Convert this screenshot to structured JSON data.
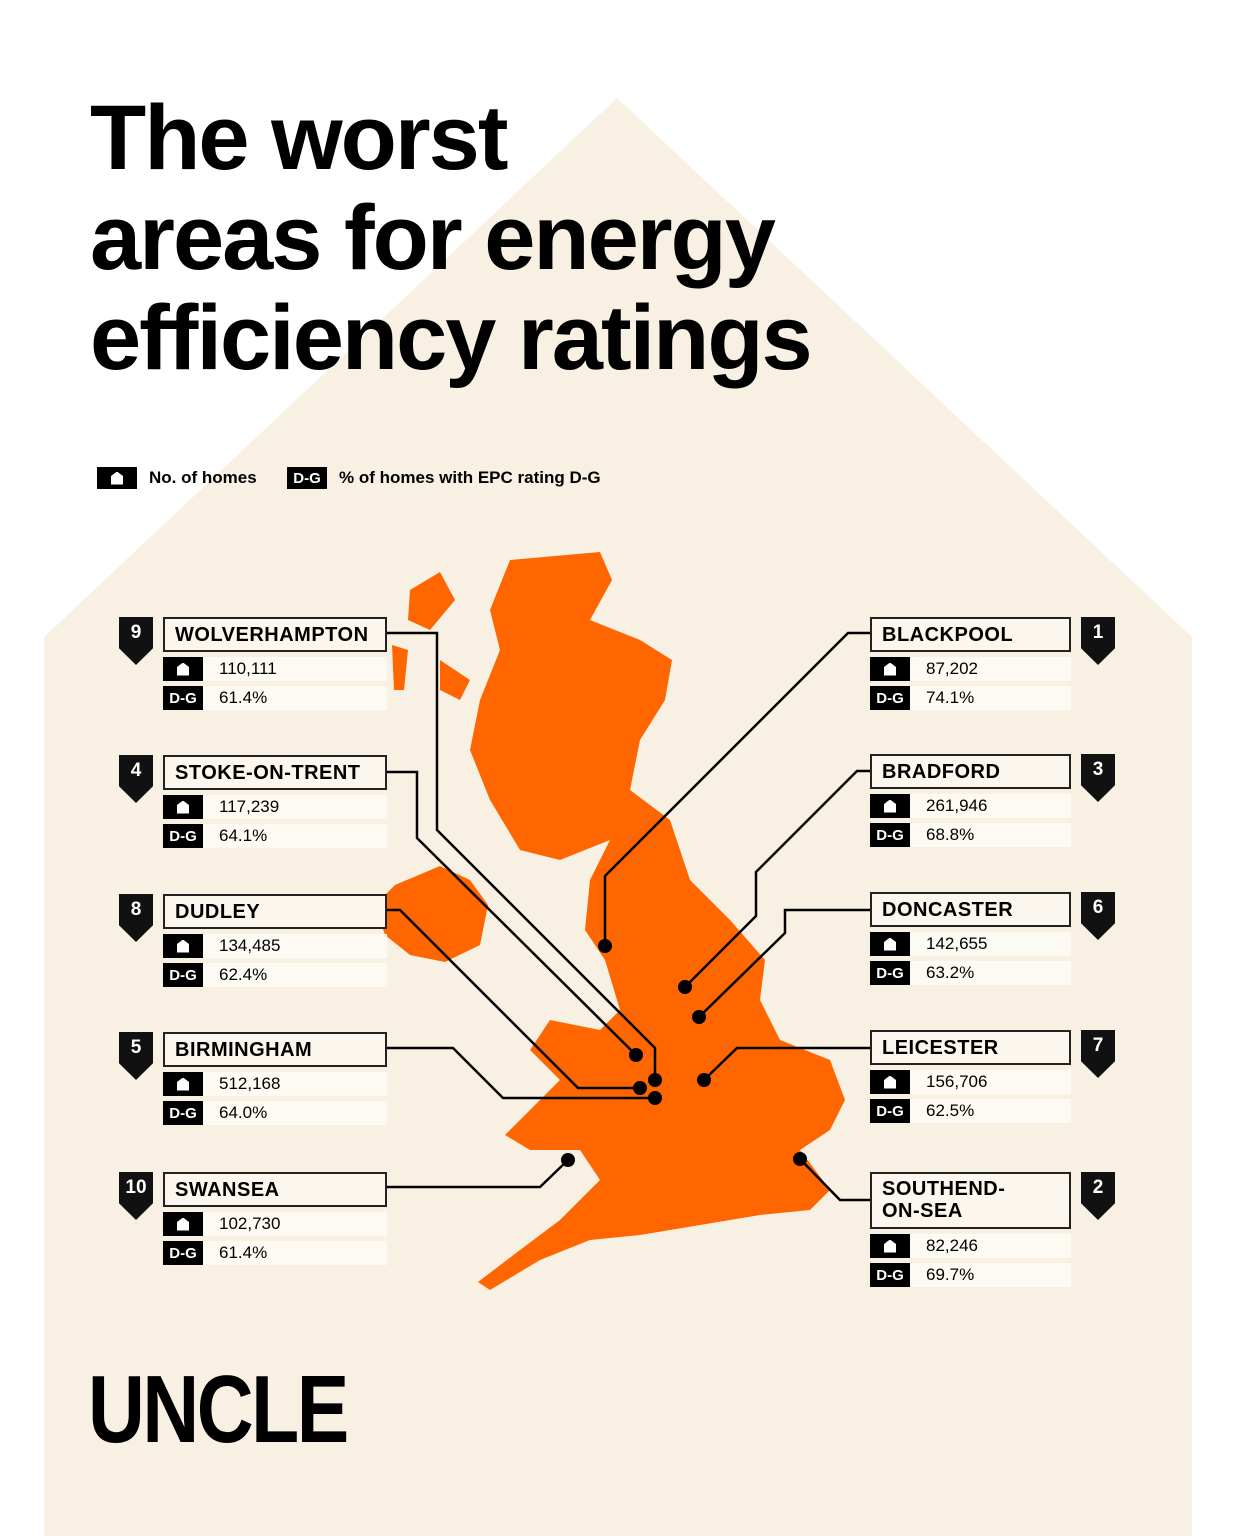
{
  "title_lines": [
    "The worst",
    "areas for energy",
    "efficiency ratings"
  ],
  "legend": {
    "homes_label": "No. of homes",
    "dg_icon": "D-G",
    "dg_label": "% of homes with EPC rating D-G"
  },
  "colors": {
    "map": "#ff6600",
    "background": "#f8f1e3",
    "ink": "#000000"
  },
  "icons": {
    "homes": "house-icon",
    "rank": "rank-badge"
  },
  "areas": [
    {
      "rank": "9",
      "name": "WOLVERHAMPTON",
      "homes": "110,111",
      "dg": "61.4%"
    },
    {
      "rank": "4",
      "name": "STOKE-ON-TRENT",
      "homes": "117,239",
      "dg": "64.1%"
    },
    {
      "rank": "8",
      "name": "DUDLEY",
      "homes": "134,485",
      "dg": "62.4%"
    },
    {
      "rank": "5",
      "name": "BIRMINGHAM",
      "homes": "512,168",
      "dg": "64.0%"
    },
    {
      "rank": "10",
      "name": "SWANSEA",
      "homes": "102,730",
      "dg": "61.4%"
    },
    {
      "rank": "1",
      "name": "BLACKPOOL",
      "homes": "87,202",
      "dg": "74.1%"
    },
    {
      "rank": "3",
      "name": "BRADFORD",
      "homes": "261,946",
      "dg": "68.8%"
    },
    {
      "rank": "6",
      "name": "DONCASTER",
      "homes": "142,655",
      "dg": "63.2%"
    },
    {
      "rank": "7",
      "name": "LEICESTER",
      "homes": "156,706",
      "dg": "62.5%"
    },
    {
      "rank": "2",
      "name": "SOUTHEND-ON-SEA",
      "name_lines": [
        "SOUTHEND-",
        "ON-SEA"
      ],
      "homes": "82,246",
      "dg": "69.7%"
    }
  ],
  "logo": "UNCLE"
}
